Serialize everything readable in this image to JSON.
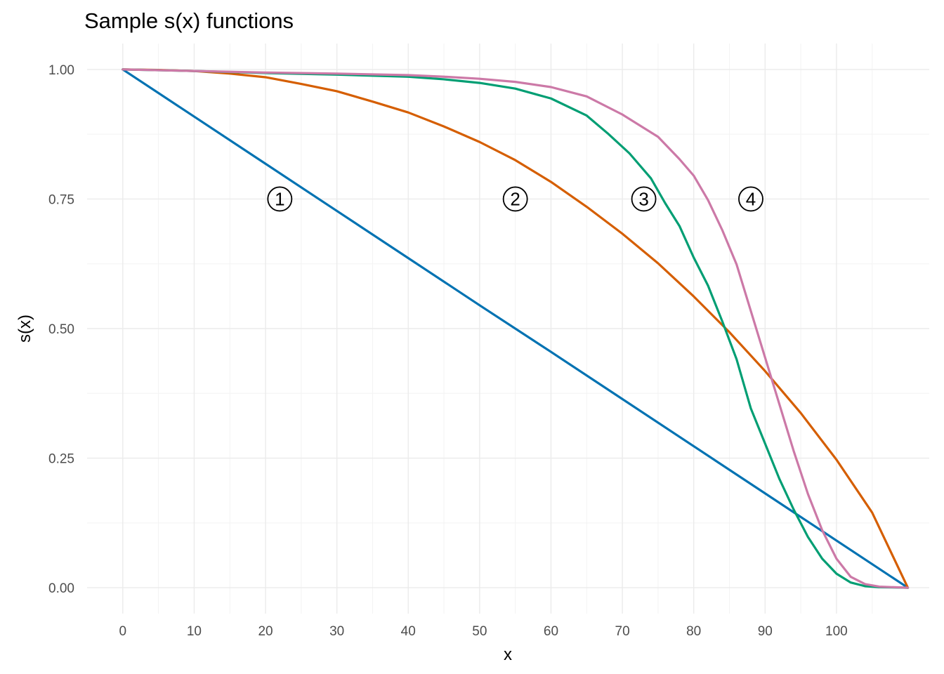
{
  "chart_data": {
    "type": "line",
    "title": "Sample s(x) functions",
    "xlabel": "x",
    "ylabel": "s(x)",
    "xlim": [
      -5,
      113
    ],
    "ylim": [
      -0.05,
      1.05
    ],
    "x_ticks": [
      0,
      10,
      20,
      30,
      40,
      50,
      60,
      70,
      80,
      90,
      100
    ],
    "x_tick_labels": [
      "0",
      "10",
      "20",
      "30",
      "40",
      "50",
      "60",
      "70",
      "80",
      "90",
      "100"
    ],
    "y_ticks": [
      0,
      0.25,
      0.5,
      0.75,
      1.0
    ],
    "y_tick_labels": [
      "0.00",
      "0.25",
      "0.50",
      "0.75",
      "1.00"
    ],
    "grid": true,
    "legend": "none",
    "series": [
      {
        "color": "#0072B2",
        "x": [
          0,
          10,
          20,
          30,
          40,
          50,
          60,
          70,
          80,
          90,
          100,
          110
        ],
        "y": [
          1.0,
          0.909,
          0.818,
          0.727,
          0.636,
          0.545,
          0.455,
          0.364,
          0.273,
          0.182,
          0.091,
          0.0
        ]
      },
      {
        "color": "#D55E00",
        "x": [
          0,
          5,
          10,
          15,
          20,
          25,
          30,
          35,
          40,
          45,
          50,
          55,
          60,
          65,
          70,
          75,
          80,
          85,
          90,
          95,
          100,
          105,
          110
        ],
        "y": [
          1.0,
          0.999,
          0.997,
          0.992,
          0.985,
          0.972,
          0.958,
          0.938,
          0.917,
          0.89,
          0.86,
          0.825,
          0.783,
          0.735,
          0.683,
          0.626,
          0.562,
          0.493,
          0.418,
          0.337,
          0.247,
          0.145,
          0.0
        ]
      },
      {
        "color": "#009E73",
        "x": [
          0,
          10,
          20,
          30,
          40,
          45,
          50,
          55,
          60,
          65,
          68,
          71,
          74,
          76,
          78,
          80,
          82,
          84,
          86,
          88,
          90,
          92,
          94,
          96,
          98,
          100,
          102,
          104,
          106,
          110
        ],
        "y": [
          1.0,
          0.997,
          0.993,
          0.99,
          0.986,
          0.981,
          0.974,
          0.963,
          0.944,
          0.911,
          0.876,
          0.838,
          0.79,
          0.742,
          0.698,
          0.637,
          0.583,
          0.514,
          0.441,
          0.346,
          0.278,
          0.21,
          0.151,
          0.098,
          0.056,
          0.027,
          0.01,
          0.003,
          0.001,
          0.0
        ]
      },
      {
        "color": "#CC79A7",
        "x": [
          0,
          10,
          20,
          30,
          40,
          45,
          50,
          55,
          60,
          65,
          70,
          75,
          78,
          80,
          82,
          84,
          86,
          88,
          90,
          92,
          94,
          96,
          98,
          100,
          102,
          104,
          106,
          110
        ],
        "y": [
          1.0,
          0.997,
          0.994,
          0.992,
          0.989,
          0.986,
          0.982,
          0.976,
          0.966,
          0.948,
          0.913,
          0.87,
          0.827,
          0.795,
          0.748,
          0.69,
          0.624,
          0.534,
          0.444,
          0.354,
          0.264,
          0.181,
          0.111,
          0.056,
          0.021,
          0.007,
          0.002,
          0.0
        ]
      }
    ],
    "annotations": [
      {
        "label": "1",
        "x": 22,
        "y": 0.75
      },
      {
        "label": "2",
        "x": 55,
        "y": 0.75
      },
      {
        "label": "3",
        "x": 73,
        "y": 0.75
      },
      {
        "label": "4",
        "x": 88,
        "y": 0.75
      }
    ]
  }
}
